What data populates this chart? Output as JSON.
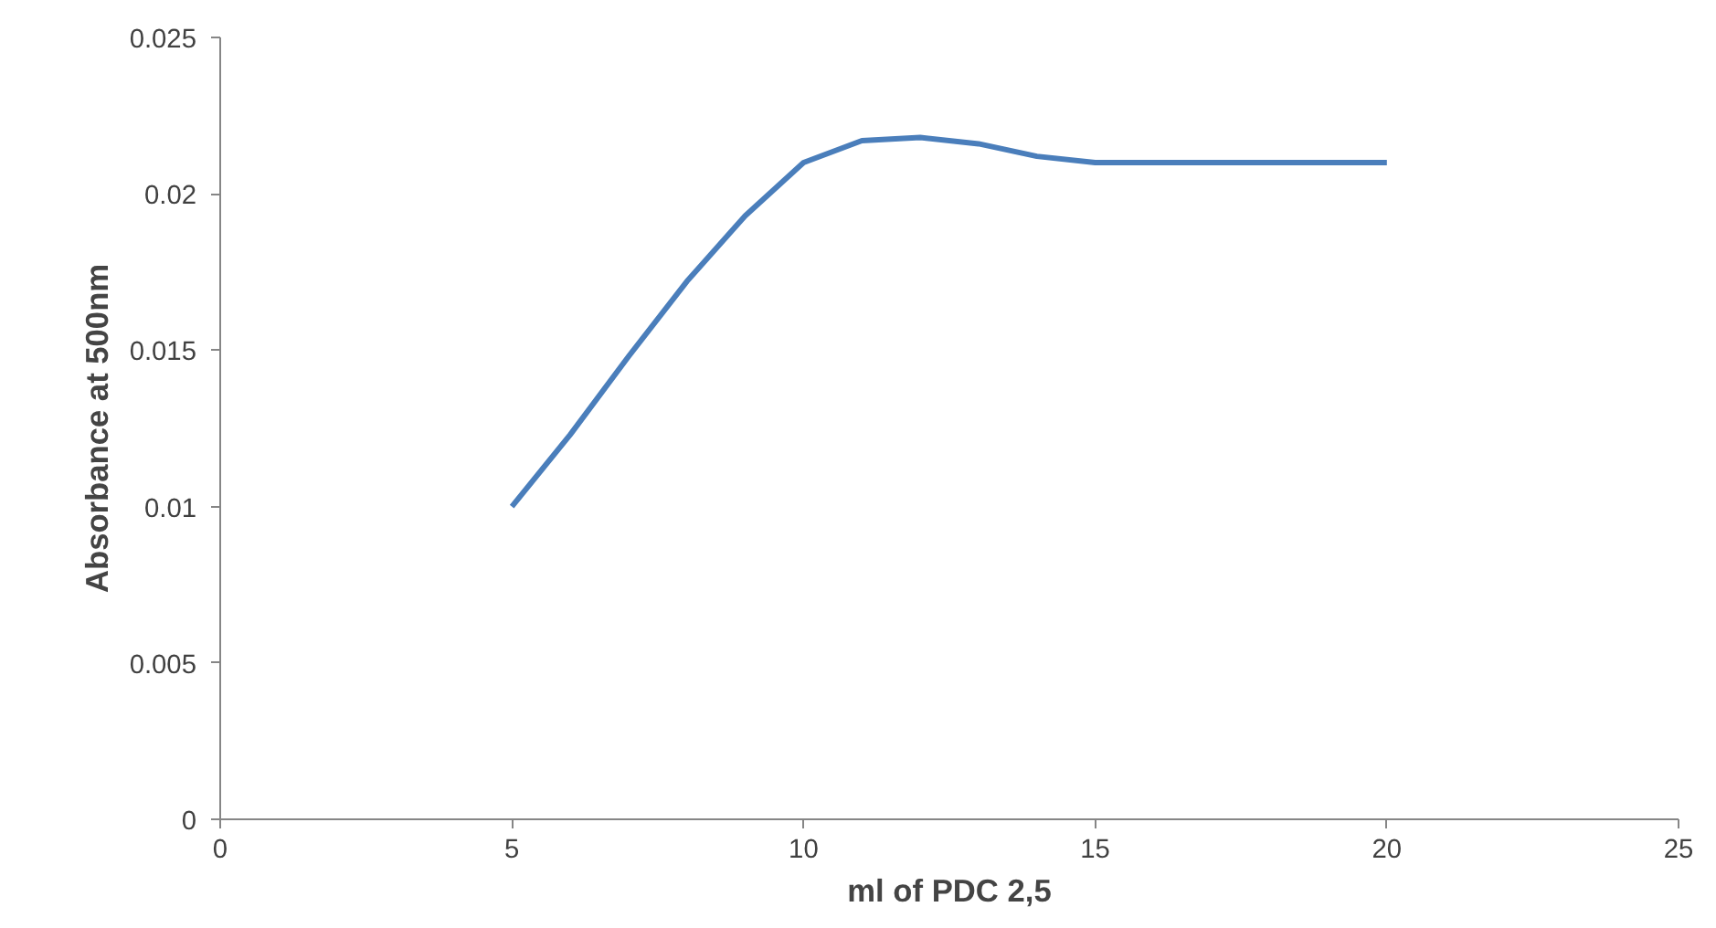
{
  "chart_data": {
    "type": "line",
    "xlabel": "ml of PDC 2,5",
    "ylabel": "Absorbance at 500nm",
    "x": [
      5,
      6,
      7,
      8,
      9,
      10,
      11,
      12,
      13,
      14,
      15,
      16,
      17,
      18,
      19,
      20
    ],
    "series": [
      {
        "color": "#4a7ebb",
        "values": [
          0.01,
          0.0123,
          0.0148,
          0.0172,
          0.0193,
          0.021,
          0.0217,
          0.0218,
          0.0216,
          0.0212,
          0.021,
          0.021,
          0.021,
          0.021,
          0.021,
          0.021
        ]
      }
    ],
    "xlim": [
      0,
      25
    ],
    "xticks": [
      0,
      5,
      10,
      15,
      20,
      25
    ],
    "ylim": [
      0,
      0.025
    ],
    "yticks": [
      0,
      0.005,
      0.01,
      0.015,
      0.02,
      0.025
    ],
    "grid": false,
    "marker": "none",
    "line_style": "solid"
  }
}
